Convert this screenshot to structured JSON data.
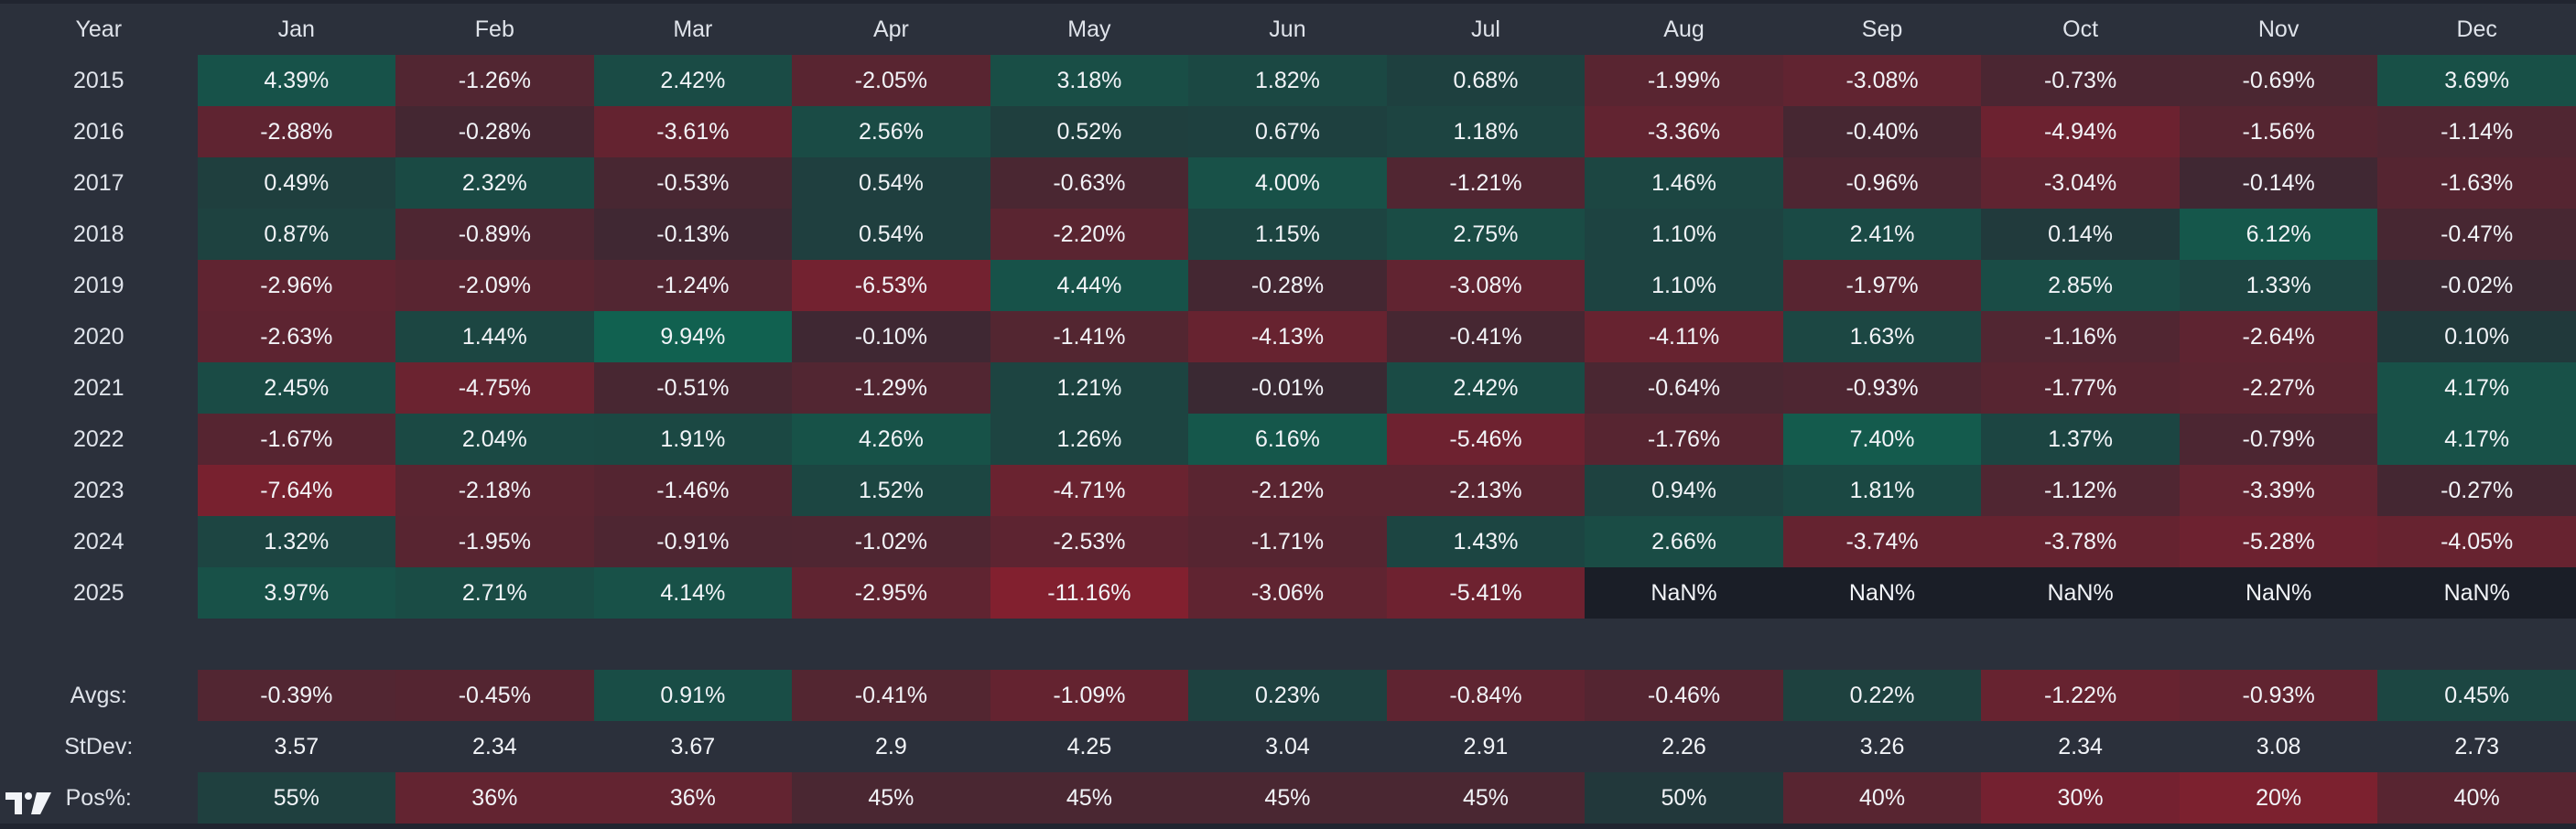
{
  "table": {
    "corner": "Year",
    "months": [
      "Jan",
      "Feb",
      "Mar",
      "Apr",
      "May",
      "Jun",
      "Jul",
      "Aug",
      "Sep",
      "Oct",
      "Nov",
      "Dec"
    ],
    "rows": [
      {
        "year": "2015",
        "values": [
          "4.39%",
          "-1.26%",
          "2.42%",
          "-2.05%",
          "3.18%",
          "1.82%",
          "0.68%",
          "-1.99%",
          "-3.08%",
          "-0.73%",
          "-0.69%",
          "3.69%"
        ]
      },
      {
        "year": "2016",
        "values": [
          "-2.88%",
          "-0.28%",
          "-3.61%",
          "2.56%",
          "0.52%",
          "0.67%",
          "1.18%",
          "-3.36%",
          "-0.40%",
          "-4.94%",
          "-1.56%",
          "-1.14%"
        ]
      },
      {
        "year": "2017",
        "values": [
          "0.49%",
          "2.32%",
          "-0.53%",
          "0.54%",
          "-0.63%",
          "4.00%",
          "-1.21%",
          "1.46%",
          "-0.96%",
          "-3.04%",
          "-0.14%",
          "-1.63%"
        ]
      },
      {
        "year": "2018",
        "values": [
          "0.87%",
          "-0.89%",
          "-0.13%",
          "0.54%",
          "-2.20%",
          "1.15%",
          "2.75%",
          "1.10%",
          "2.41%",
          "0.14%",
          "6.12%",
          "-0.47%"
        ]
      },
      {
        "year": "2019",
        "values": [
          "-2.96%",
          "-2.09%",
          "-1.24%",
          "-6.53%",
          "4.44%",
          "-0.28%",
          "-3.08%",
          "1.10%",
          "-1.97%",
          "2.85%",
          "1.33%",
          "-0.02%"
        ]
      },
      {
        "year": "2020",
        "values": [
          "-2.63%",
          "1.44%",
          "9.94%",
          "-0.10%",
          "-1.41%",
          "-4.13%",
          "-0.41%",
          "-4.11%",
          "1.63%",
          "-1.16%",
          "-2.64%",
          "0.10%"
        ]
      },
      {
        "year": "2021",
        "values": [
          "2.45%",
          "-4.75%",
          "-0.51%",
          "-1.29%",
          "1.21%",
          "-0.01%",
          "2.42%",
          "-0.64%",
          "-0.93%",
          "-1.77%",
          "-2.27%",
          "4.17%"
        ]
      },
      {
        "year": "2022",
        "values": [
          "-1.67%",
          "2.04%",
          "1.91%",
          "4.26%",
          "1.26%",
          "6.16%",
          "-5.46%",
          "-1.76%",
          "7.40%",
          "1.37%",
          "-0.79%",
          "4.17%"
        ]
      },
      {
        "year": "2023",
        "values": [
          "-7.64%",
          "-2.18%",
          "-1.46%",
          "1.52%",
          "-4.71%",
          "-2.12%",
          "-2.13%",
          "0.94%",
          "1.81%",
          "-1.12%",
          "-3.39%",
          "-0.27%"
        ]
      },
      {
        "year": "2024",
        "values": [
          "1.32%",
          "-1.95%",
          "-0.91%",
          "-1.02%",
          "-2.53%",
          "-1.71%",
          "1.43%",
          "2.66%",
          "-3.74%",
          "-3.78%",
          "-5.28%",
          "-4.05%"
        ]
      },
      {
        "year": "2025",
        "values": [
          "3.97%",
          "2.71%",
          "4.14%",
          "-2.95%",
          "-11.16%",
          "-3.06%",
          "-5.41%",
          "NaN%",
          "NaN%",
          "NaN%",
          "NaN%",
          "NaN%"
        ]
      }
    ],
    "summary": [
      {
        "label": "Avgs:",
        "type": "avg",
        "values": [
          "-0.39%",
          "-0.45%",
          "0.91%",
          "-0.41%",
          "-1.09%",
          "0.23%",
          "-0.84%",
          "-0.46%",
          "0.22%",
          "-1.22%",
          "-0.93%",
          "0.45%"
        ]
      },
      {
        "label": "StDev:",
        "type": "stdev",
        "values": [
          "3.57",
          "2.34",
          "3.67",
          "2.9",
          "4.25",
          "3.04",
          "2.91",
          "2.26",
          "3.26",
          "2.34",
          "3.08",
          "2.73"
        ]
      },
      {
        "label": "Pos%:",
        "type": "pos",
        "values": [
          "55%",
          "36%",
          "36%",
          "45%",
          "45%",
          "45%",
          "45%",
          "50%",
          "40%",
          "30%",
          "20%",
          "40%"
        ]
      }
    ]
  },
  "colors": {
    "background": "#212530",
    "label_bg": "#2b303b",
    "nan_bg": "#1a1e27",
    "neutral_bg": "#272b34",
    "positive_rgb": [
      10,
      115,
      90
    ],
    "negative_rgb": [
      160,
      28,
      45
    ]
  },
  "logo": {
    "icon": "tradingview-logo-icon",
    "text": "TV"
  }
}
